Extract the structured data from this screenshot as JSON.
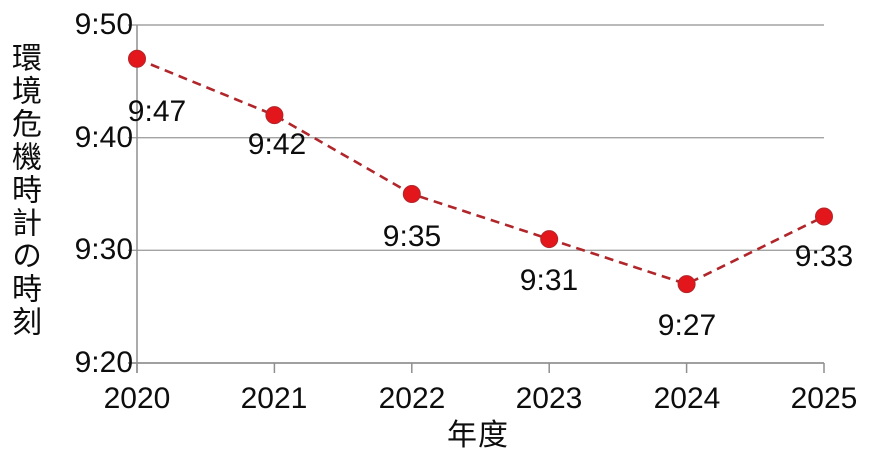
{
  "chart_data": {
    "type": "line",
    "title": "",
    "ylabel": "環境危機時計の時刻",
    "xlabel": "年度",
    "categories": [
      "2020",
      "2021",
      "2022",
      "2023",
      "2024",
      "2025"
    ],
    "y_ticks": [
      "9:50",
      "9:40",
      "9:30",
      "9:20"
    ],
    "ylim": [
      "9:20",
      "9:50"
    ],
    "grid": "horizontal",
    "legend": "none",
    "series": [
      {
        "name": "環境危機時計の時刻",
        "values": [
          "9:47",
          "9:42",
          "9:35",
          "9:31",
          "9:27",
          "9:33"
        ],
        "values_minutes_past_9": [
          47,
          42,
          35,
          31,
          27,
          33
        ],
        "labels": [
          "9:47",
          "9:42",
          "9:35",
          "9:31",
          "9:27",
          "9:33"
        ],
        "line_style": "dashed",
        "line_color": "#b0262b",
        "marker": "circle",
        "marker_color": "#e3161b"
      }
    ],
    "grid_color": "#a3a3a3",
    "axis_color": "#8f8f8f",
    "text_color": "#0d0d0d"
  }
}
